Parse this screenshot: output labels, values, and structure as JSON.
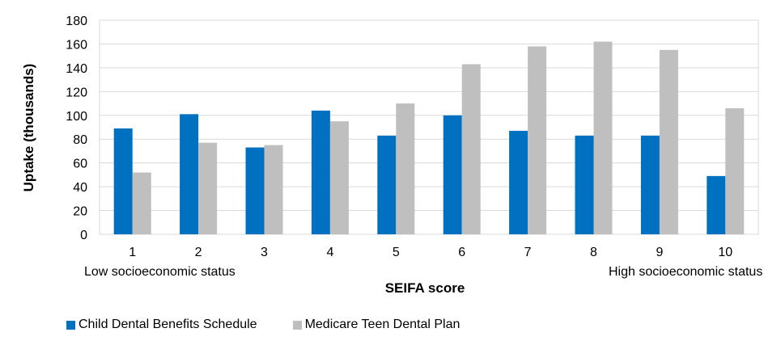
{
  "chart_data": {
    "type": "bar",
    "title": "",
    "xlabel": "SEIFA score",
    "ylabel": "Uptake (thousands)",
    "categories": [
      "1",
      "2",
      "3",
      "4",
      "5",
      "6",
      "7",
      "8",
      "9",
      "10"
    ],
    "ylim": [
      0,
      180
    ],
    "yticks": [
      "0",
      "20",
      "40",
      "60",
      "80",
      "100",
      "120",
      "140",
      "160",
      "180"
    ],
    "grid": true,
    "legend_position": "bottom-left",
    "annotations": {
      "low": "Low socioeconomic status",
      "high": "High socioeconomic status"
    },
    "series": [
      {
        "name": "Child Dental Benefits Schedule",
        "color": "#0070C0",
        "values": [
          89,
          101,
          73,
          104,
          83,
          100,
          87,
          83,
          83,
          49
        ]
      },
      {
        "name": "Medicare Teen Dental Plan",
        "color": "#BFBFBF",
        "values": [
          52,
          77,
          75,
          95,
          110,
          143,
          158,
          162,
          155,
          106
        ]
      }
    ]
  }
}
